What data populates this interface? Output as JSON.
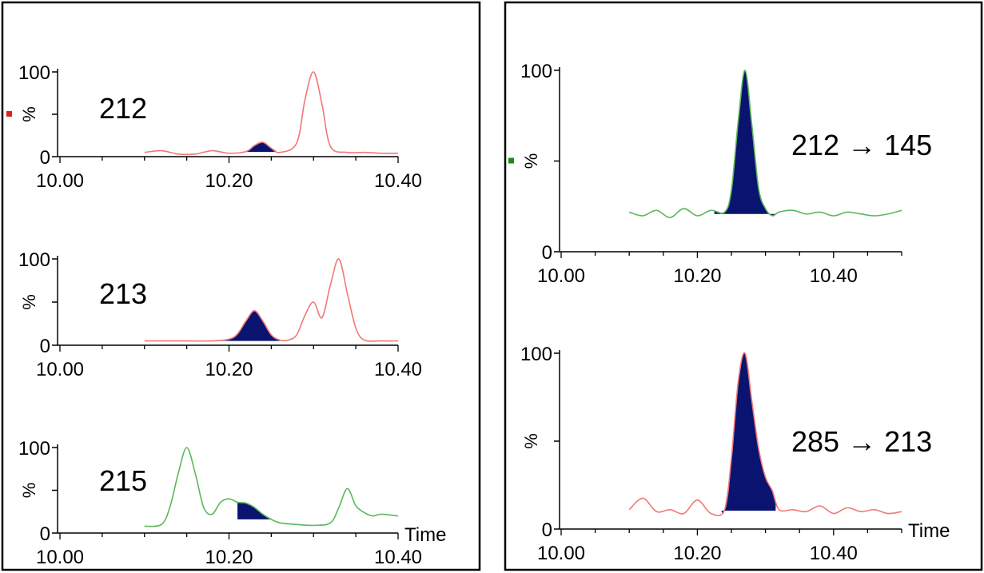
{
  "colors": {
    "frame": "#000000",
    "area_fill": "#0a1470",
    "red_trace": "#f07878",
    "green_trace": "#5cb85c",
    "red_marker": "#e02020",
    "green_marker": "#1a8a1a"
  },
  "chart_data": [
    {
      "type": "line",
      "label": "212",
      "ylabel": "%",
      "yticks": [
        "0",
        "100"
      ],
      "xticks": [
        "10.00",
        "10.20",
        "10.40"
      ],
      "xlim": [
        10.0,
        10.4
      ],
      "ylim": [
        0,
        100
      ],
      "color": "red",
      "marker": true,
      "x": [
        10.1,
        10.12,
        10.14,
        10.16,
        10.18,
        10.2,
        10.22,
        10.23,
        10.24,
        10.25,
        10.26,
        10.28,
        10.29,
        10.3,
        10.31,
        10.32,
        10.34,
        10.36,
        10.38,
        10.4
      ],
      "y": [
        5,
        7,
        3,
        3,
        7,
        4,
        6,
        13,
        17,
        10,
        5,
        16,
        68,
        100,
        62,
        12,
        5,
        5,
        4,
        4
      ],
      "shaded_x": [
        10.215,
        10.255
      ]
    },
    {
      "type": "line",
      "label": "213",
      "ylabel": "%",
      "yticks": [
        "0",
        "100"
      ],
      "xticks": [
        "10.00",
        "10.20",
        "10.40"
      ],
      "xlim": [
        10.0,
        10.4
      ],
      "ylim": [
        0,
        100
      ],
      "color": "red",
      "x": [
        10.1,
        10.14,
        10.18,
        10.2,
        10.21,
        10.22,
        10.23,
        10.24,
        10.25,
        10.26,
        10.27,
        10.28,
        10.29,
        10.3,
        10.31,
        10.32,
        10.33,
        10.34,
        10.35,
        10.36,
        10.38,
        10.4
      ],
      "y": [
        5,
        5,
        5,
        7,
        13,
        28,
        40,
        28,
        12,
        6,
        6,
        12,
        35,
        50,
        32,
        70,
        100,
        60,
        20,
        6,
        5,
        5
      ],
      "shaded_x": [
        10.18,
        10.26
      ]
    },
    {
      "type": "line",
      "label": "215",
      "ylabel": "%",
      "yticks": [
        "0",
        "100"
      ],
      "xticks": [
        "10.00",
        "10.20",
        "10.40"
      ],
      "xlim": [
        10.0,
        10.4
      ],
      "ylim": [
        0,
        100
      ],
      "xlabel": "Time",
      "color": "green",
      "x": [
        10.1,
        10.12,
        10.13,
        10.14,
        10.15,
        10.16,
        10.17,
        10.18,
        10.19,
        10.2,
        10.21,
        10.22,
        10.23,
        10.24,
        10.25,
        10.26,
        10.28,
        10.3,
        10.32,
        10.33,
        10.34,
        10.35,
        10.36,
        10.37,
        10.38,
        10.4
      ],
      "y": [
        8,
        10,
        30,
        70,
        100,
        70,
        30,
        22,
        36,
        40,
        36,
        35,
        30,
        22,
        16,
        12,
        10,
        9,
        12,
        30,
        52,
        32,
        24,
        20,
        22,
        20
      ],
      "shaded_x": [
        10.21,
        10.25
      ]
    },
    {
      "type": "line",
      "label": "212 → 145",
      "ylabel": "%",
      "yticks": [
        "0",
        "100"
      ],
      "xticks": [
        "10.00",
        "10.20",
        "10.40"
      ],
      "xlim": [
        10.0,
        10.5
      ],
      "ylim": [
        0,
        100
      ],
      "color": "green",
      "marker": true,
      "x": [
        10.1,
        10.12,
        10.14,
        10.16,
        10.18,
        10.2,
        10.22,
        10.24,
        10.25,
        10.26,
        10.27,
        10.28,
        10.29,
        10.3,
        10.31,
        10.32,
        10.34,
        10.36,
        10.38,
        10.4,
        10.42,
        10.44,
        10.46,
        10.48,
        10.5
      ],
      "y": [
        22,
        20,
        23,
        19,
        24,
        20,
        23,
        22,
        34,
        72,
        100,
        70,
        35,
        24,
        20,
        22,
        23,
        21,
        22,
        20,
        22,
        21,
        20,
        21,
        23
      ],
      "shaded_x": [
        10.225,
        10.315
      ]
    },
    {
      "type": "line",
      "label": "285 → 213",
      "ylabel": "%",
      "yticks": [
        "0",
        "100"
      ],
      "xticks": [
        "10.00",
        "10.20",
        "10.40"
      ],
      "xlim": [
        10.0,
        10.5
      ],
      "ylim": [
        0,
        100
      ],
      "xlabel": "Time",
      "color": "red",
      "x": [
        10.1,
        10.12,
        10.14,
        10.16,
        10.18,
        10.2,
        10.22,
        10.24,
        10.25,
        10.26,
        10.27,
        10.28,
        10.29,
        10.3,
        10.31,
        10.32,
        10.34,
        10.36,
        10.38,
        10.4,
        10.42,
        10.44,
        10.46,
        10.48,
        10.5
      ],
      "y": [
        18,
        24,
        17,
        18,
        16,
        23,
        16,
        18,
        45,
        85,
        100,
        75,
        50,
        35,
        28,
        18,
        18,
        17,
        20,
        16,
        19,
        17,
        18,
        16,
        17
      ],
      "shaded_x": [
        10.235,
        10.315
      ]
    }
  ]
}
